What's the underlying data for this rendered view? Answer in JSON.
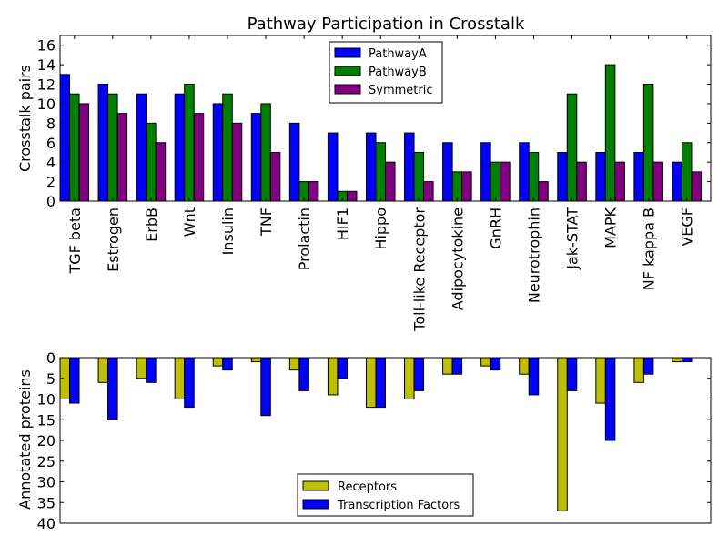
{
  "chart_data": [
    {
      "type": "bar",
      "title": "Pathway Participation in Crosstalk",
      "xlabel": "",
      "ylabel": "Crosstalk pairs",
      "ylim": [
        0,
        17
      ],
      "yticks": [
        0,
        2,
        4,
        6,
        8,
        10,
        12,
        14,
        16
      ],
      "grid": false,
      "legend_position": "top-center",
      "categories": [
        "TGF beta",
        "Estrogen",
        "ErbB",
        "Wnt",
        "Insulin",
        "TNF",
        "Prolactin",
        "HIF1",
        "Hippo",
        "Toll-like Receptor",
        "Adipocytokine",
        "GnRH",
        "Neurotrophin",
        "Jak-STAT",
        "MAPK",
        "NF kappa B",
        "VEGF"
      ],
      "series": [
        {
          "name": "PathwayA",
          "color": "#0000ff",
          "values": [
            13,
            12,
            11,
            11,
            10,
            9,
            8,
            7,
            7,
            7,
            6,
            6,
            6,
            5,
            5,
            5,
            4
          ]
        },
        {
          "name": "PathwayB",
          "color": "#008000",
          "values": [
            11,
            11,
            8,
            12,
            11,
            10,
            2,
            1,
            6,
            5,
            3,
            4,
            5,
            11,
            14,
            12,
            6
          ]
        },
        {
          "name": "Symmetric",
          "color": "#800080",
          "values": [
            10,
            9,
            6,
            9,
            8,
            5,
            2,
            1,
            4,
            2,
            3,
            4,
            2,
            4,
            4,
            4,
            3
          ]
        }
      ]
    },
    {
      "type": "bar",
      "title": "",
      "xlabel": "",
      "ylabel": "Annotated proteins",
      "ylim": [
        0,
        40
      ],
      "y_inverted": true,
      "yticks": [
        0,
        5,
        10,
        15,
        20,
        25,
        30,
        35,
        40
      ],
      "grid": false,
      "legend_position": "bottom-center",
      "categories": [
        "TGF beta",
        "Estrogen",
        "ErbB",
        "Wnt",
        "Insulin",
        "TNF",
        "Prolactin",
        "HIF1",
        "Hippo",
        "Toll-like Receptor",
        "Adipocytokine",
        "GnRH",
        "Neurotrophin",
        "Jak-STAT",
        "MAPK",
        "NF kappa B",
        "VEGF"
      ],
      "series": [
        {
          "name": "Receptors",
          "color": "#bfbf00",
          "values": [
            10,
            6,
            5,
            10,
            2,
            1,
            3,
            9,
            12,
            10,
            4,
            2,
            4,
            37,
            11,
            6,
            1
          ]
        },
        {
          "name": "Transcription Factors",
          "color": "#0000ff",
          "values": [
            11,
            15,
            6,
            12,
            3,
            14,
            8,
            5,
            12,
            8,
            4,
            3,
            9,
            8,
            20,
            4,
            1
          ]
        }
      ]
    }
  ]
}
